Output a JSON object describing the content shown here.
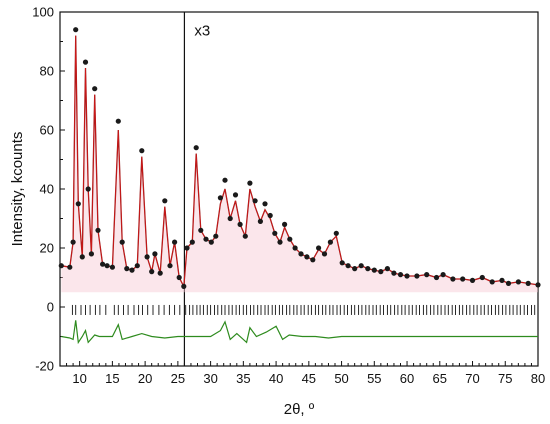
{
  "chart_data": {
    "type": "scatter",
    "xlabel": "2θ, º",
    "ylabel": "Intensity, kcounts",
    "xlim": [
      7,
      80
    ],
    "ylim": [
      -20,
      100
    ],
    "x_ticks": [
      10,
      15,
      20,
      25,
      30,
      35,
      40,
      45,
      50,
      55,
      60,
      65,
      70,
      75,
      80
    ],
    "y_ticks": [
      -20,
      0,
      20,
      40,
      60,
      80,
      100
    ],
    "grid": false,
    "legend": "none",
    "annotations": [
      {
        "text": "x3",
        "x": 26,
        "note": "data right of the vertical line scaled x3"
      }
    ],
    "divider_x": 26,
    "series": [
      {
        "kind": "observed",
        "marker": "dot",
        "color": "#1a1a1a",
        "x": [
          7.2,
          8.5,
          9.0,
          9.4,
          9.8,
          10.4,
          10.9,
          11.3,
          11.8,
          12.3,
          12.8,
          13.5,
          14.2,
          15.0,
          15.9,
          16.5,
          17.2,
          18.0,
          18.8,
          19.5,
          20.3,
          21.0,
          21.5,
          22.3,
          23.0,
          23.8,
          24.5,
          25.2,
          25.9,
          26.4,
          27.2,
          27.8,
          28.5,
          29.3,
          30.1,
          30.8,
          31.5,
          32.2,
          33.0,
          33.8,
          34.5,
          35.3,
          36.0,
          36.8,
          37.6,
          38.3,
          39.1,
          39.8,
          40.6,
          41.3,
          42.1,
          42.9,
          43.8,
          44.7,
          45.6,
          46.5,
          47.4,
          48.3,
          49.2,
          50.1,
          51.0,
          52.0,
          53.0,
          54.0,
          55.0,
          56.0,
          57.0,
          58.0,
          59.0,
          60.0,
          61.5,
          63.0,
          64.5,
          65.5,
          67.0,
          68.5,
          70.0,
          71.5,
          73.0,
          74.5,
          75.5,
          77.0,
          78.5,
          80.0
        ],
        "y": [
          14.0,
          13.5,
          22.0,
          94.0,
          35.0,
          17.0,
          83.0,
          40.0,
          18.0,
          74.0,
          26.0,
          14.5,
          14.0,
          13.5,
          63.0,
          22.0,
          13.0,
          12.5,
          14.0,
          53.0,
          17.0,
          12.0,
          18.0,
          11.5,
          36.0,
          14.0,
          22.0,
          10.0,
          7.0,
          20.0,
          22.0,
          54.0,
          26.0,
          23.0,
          22.0,
          24.0,
          37.0,
          43.0,
          30.0,
          38.0,
          28.0,
          24.0,
          42.0,
          36.0,
          29.0,
          35.0,
          31.0,
          25.0,
          22.0,
          28.0,
          23.0,
          20.0,
          18.0,
          17.0,
          16.0,
          20.0,
          18.0,
          22.0,
          25.0,
          15.0,
          14.0,
          13.0,
          14.0,
          13.0,
          12.5,
          12.0,
          13.0,
          11.5,
          11.0,
          10.5,
          10.5,
          11.0,
          10.0,
          11.0,
          9.5,
          9.5,
          9.0,
          10.0,
          8.5,
          9.0,
          8.0,
          8.5,
          8.0,
          7.5
        ]
      },
      {
        "kind": "calculated",
        "marker": "line",
        "color": "#8b1a1a",
        "x": [
          7.2,
          8.5,
          9.0,
          9.4,
          9.8,
          10.4,
          10.9,
          11.3,
          11.8,
          12.3,
          12.8,
          13.5,
          14.2,
          15.0,
          15.9,
          16.5,
          17.2,
          18.0,
          18.8,
          19.5,
          20.3,
          21.0,
          21.5,
          22.3,
          23.0,
          23.8,
          24.5,
          25.2,
          25.9,
          26.4,
          27.2,
          27.8,
          28.5,
          29.3,
          30.1,
          30.8,
          31.5,
          32.2,
          33.0,
          33.8,
          34.5,
          35.3,
          36.0,
          36.8,
          37.6,
          38.3,
          39.1,
          39.8,
          40.6,
          41.3,
          42.1,
          42.9,
          43.8,
          44.7,
          45.6,
          46.5,
          47.4,
          48.3,
          49.2,
          50.1,
          51.0,
          52.0,
          53.0,
          54.0,
          55.0,
          56.0,
          57.0,
          58.0,
          59.0,
          60.0,
          61.5,
          63.0,
          64.5,
          65.5,
          67.0,
          68.5,
          70.0,
          71.5,
          73.0,
          74.5,
          75.5,
          77.0,
          78.5,
          80.0
        ],
        "y": [
          14.0,
          13.5,
          22.0,
          92.0,
          35.0,
          17.0,
          81.0,
          40.0,
          18.0,
          72.0,
          26.0,
          14.5,
          14.0,
          13.5,
          60.0,
          22.0,
          13.0,
          12.5,
          14.0,
          51.0,
          17.0,
          12.0,
          18.0,
          11.5,
          34.0,
          14.0,
          22.0,
          10.0,
          7.0,
          20.0,
          22.0,
          52.0,
          26.0,
          23.0,
          22.0,
          24.0,
          35.0,
          40.0,
          30.0,
          36.0,
          28.0,
          24.0,
          40.0,
          34.0,
          29.0,
          33.0,
          30.0,
          25.0,
          22.0,
          27.0,
          23.0,
          20.0,
          18.0,
          17.0,
          16.0,
          19.5,
          18.0,
          22.0,
          24.0,
          15.0,
          14.0,
          13.0,
          14.0,
          13.0,
          12.5,
          12.0,
          13.0,
          11.5,
          11.0,
          10.5,
          10.5,
          11.0,
          10.0,
          11.0,
          9.5,
          9.5,
          9.0,
          10.0,
          8.5,
          9.0,
          8.0,
          8.5,
          8.0,
          7.5
        ]
      },
      {
        "kind": "difference",
        "marker": "line",
        "color": "#2e8b1e",
        "x": [
          7.2,
          8.5,
          9.0,
          9.4,
          9.8,
          10.4,
          10.9,
          11.3,
          12.3,
          13.0,
          14.0,
          15.0,
          15.9,
          16.5,
          18.0,
          19.5,
          21.0,
          23.0,
          25.0,
          26.4,
          28.0,
          30.0,
          31.5,
          32.2,
          33.0,
          34.0,
          35.5,
          36.0,
          37.0,
          38.5,
          40.0,
          41.0,
          42.0,
          44.0,
          46.0,
          48.0,
          50.0,
          52.0,
          55.0,
          58.0,
          62.0,
          66.0,
          70.0,
          75.0,
          80.0
        ],
        "y": [
          -10.0,
          -10.5,
          -11.0,
          -4.5,
          -12.0,
          -10.0,
          -8.0,
          -12.0,
          -9.5,
          -10.0,
          -10.0,
          -10.0,
          -6.0,
          -11.0,
          -10.0,
          -9.0,
          -10.0,
          -10.5,
          -10.0,
          -10.0,
          -10.0,
          -10.0,
          -8.0,
          -5.0,
          -11.0,
          -9.0,
          -12.0,
          -7.0,
          -10.0,
          -8.5,
          -6.5,
          -11.0,
          -9.5,
          -10.0,
          -10.0,
          -10.5,
          -10.0,
          -10.0,
          -10.0,
          -10.0,
          -10.0,
          -10.0,
          -10.0,
          -10.0,
          -10.0
        ]
      }
    ],
    "reflection_ticks_row_y": -1,
    "reflection_positions": [
      8.9,
      9.4,
      10.2,
      10.9,
      11.6,
      12.4,
      13.1,
      14.0,
      15.3,
      15.9,
      16.7,
      17.4,
      18.3,
      19.0,
      19.6,
      20.4,
      21.2,
      22.1,
      22.9,
      23.7,
      24.5,
      25.3,
      26.2,
      26.8,
      27.3,
      27.9,
      28.4,
      28.9,
      29.5,
      30.0,
      30.6,
      31.1,
      31.7,
      32.2,
      32.8,
      33.3,
      33.9,
      34.4,
      35.0,
      35.5,
      36.1,
      36.6,
      37.2,
      37.7,
      38.3,
      38.8,
      39.4,
      39.9,
      40.5,
      41.0,
      41.6,
      42.1,
      42.7,
      43.2,
      43.8,
      44.3,
      44.9,
      45.4,
      46.0,
      46.5,
      47.1,
      47.6,
      48.2,
      48.7,
      49.3,
      49.8,
      50.4,
      50.9,
      51.5,
      52.0,
      52.6,
      53.1,
      53.7,
      54.2,
      54.8,
      55.3,
      55.9,
      56.4,
      57.0,
      57.5,
      58.1,
      58.6,
      59.2,
      59.7,
      60.3,
      60.8,
      61.4,
      61.9,
      62.5,
      63.0,
      63.6,
      64.1,
      64.7,
      65.2,
      65.8,
      66.3,
      66.9,
      67.4,
      68.0,
      68.5,
      69.1,
      69.6,
      70.2,
      70.7,
      71.3,
      71.8,
      72.4,
      72.9,
      73.5,
      74.0,
      74.6,
      75.1,
      75.7,
      76.2,
      76.8,
      77.3,
      77.9,
      78.4,
      79.0,
      79.5
    ]
  }
}
